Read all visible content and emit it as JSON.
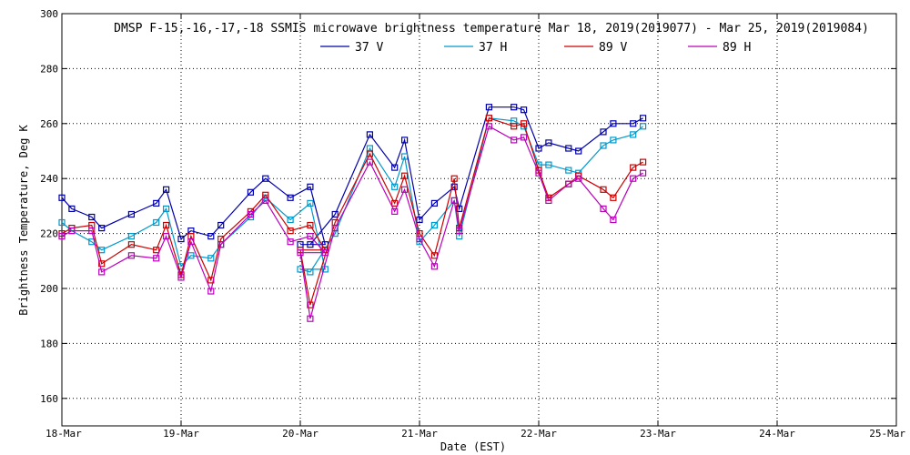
{
  "chart_data": {
    "type": "line",
    "title": "DMSP F-15,-16,-17,-18 SSMIS microwave brightness temperature Mar 18, 2019(2019077) - Mar 25, 2019(2019084)",
    "xlabel": "Date (EST)",
    "ylabel": "Brightness Temperature, Deg K",
    "xlim": [
      "2019-03-18",
      "2019-03-25"
    ],
    "ylim": [
      150,
      300
    ],
    "yticks": [
      160,
      180,
      200,
      220,
      240,
      260,
      280,
      300
    ],
    "xtick_labels": [
      "18-Mar",
      "19-Mar",
      "20-Mar",
      "21-Mar",
      "22-Mar",
      "23-Mar",
      "24-Mar",
      "25-Mar"
    ],
    "grid": true,
    "legend_position": "top-center",
    "marker": "square",
    "series": [
      {
        "name": "37 V",
        "color": "#0000aa",
        "x": [
          "2019-03-18 00:00",
          "2019-03-18 02:00",
          "2019-03-18 06:00",
          "2019-03-18 08:00",
          "2019-03-18 14:00",
          "2019-03-18 19:00",
          "2019-03-18 21:00",
          "2019-03-19 00:00",
          "2019-03-19 02:00",
          "2019-03-19 06:00",
          "2019-03-19 08:00",
          "2019-03-19 14:00",
          "2019-03-19 17:00",
          "2019-03-19 22:00",
          "2019-03-20 02:00",
          "2019-03-20 05:00",
          "2019-03-20 00:00",
          "2019-03-20 02:00",
          "2019-03-20 07:00",
          "2019-03-20 14:00",
          "2019-03-20 19:00",
          "2019-03-20 21:00",
          "2019-03-21 00:00",
          "2019-03-21 03:00",
          "2019-03-21 07:00",
          "2019-03-21 08:00",
          "2019-03-21 14:00",
          "2019-03-21 19:00",
          "2019-03-21 21:00",
          "2019-03-22 00:00",
          "2019-03-22 02:00",
          "2019-03-22 06:00",
          "2019-03-22 08:00",
          "2019-03-22 13:00",
          "2019-03-22 15:00",
          "2019-03-22 19:00",
          "2019-03-22 21:00"
        ],
        "y": [
          233,
          229,
          226,
          222,
          227,
          231,
          236,
          218,
          221,
          219,
          223,
          235,
          240,
          233,
          237,
          216,
          216,
          216,
          227,
          256,
          244,
          254,
          225,
          231,
          237,
          229,
          266,
          266,
          265,
          251,
          253,
          251,
          250,
          257,
          260,
          260,
          262
        ]
      },
      {
        "name": "37 H",
        "color": "#0099cc",
        "x": [
          "2019-03-18 00:00",
          "2019-03-18 02:00",
          "2019-03-18 06:00",
          "2019-03-18 08:00",
          "2019-03-18 14:00",
          "2019-03-18 19:00",
          "2019-03-18 21:00",
          "2019-03-19 00:00",
          "2019-03-19 02:00",
          "2019-03-19 06:00",
          "2019-03-19 08:00",
          "2019-03-19 14:00",
          "2019-03-19 17:00",
          "2019-03-19 22:00",
          "2019-03-20 02:00",
          "2019-03-20 05:00",
          "2019-03-20 00:00",
          "2019-03-20 02:00",
          "2019-03-20 07:00",
          "2019-03-20 14:00",
          "2019-03-20 19:00",
          "2019-03-20 21:00",
          "2019-03-21 00:00",
          "2019-03-21 03:00",
          "2019-03-21 07:00",
          "2019-03-21 08:00",
          "2019-03-21 14:00",
          "2019-03-21 19:00",
          "2019-03-21 21:00",
          "2019-03-22 00:00",
          "2019-03-22 02:00",
          "2019-03-22 06:00",
          "2019-03-22 08:00",
          "2019-03-22 13:00",
          "2019-03-22 15:00",
          "2019-03-22 19:00",
          "2019-03-22 21:00"
        ],
        "y": [
          224,
          221,
          217,
          214,
          219,
          224,
          229,
          208,
          212,
          211,
          216,
          226,
          233,
          225,
          231,
          207,
          207,
          206,
          220,
          251,
          237,
          248,
          217,
          223,
          232,
          219,
          262,
          261,
          259,
          245,
          245,
          243,
          242,
          252,
          254,
          256,
          259
        ]
      },
      {
        "name": "89 V",
        "color": "#cc0000",
        "x": [
          "2019-03-18 00:00",
          "2019-03-18 02:00",
          "2019-03-18 06:00",
          "2019-03-18 08:00",
          "2019-03-18 14:00",
          "2019-03-18 19:00",
          "2019-03-18 21:00",
          "2019-03-19 00:00",
          "2019-03-19 02:00",
          "2019-03-19 06:00",
          "2019-03-19 08:00",
          "2019-03-19 14:00",
          "2019-03-19 17:00",
          "2019-03-19 22:00",
          "2019-03-20 02:00",
          "2019-03-20 05:00",
          "2019-03-20 00:00",
          "2019-03-20 02:00",
          "2019-03-20 07:00",
          "2019-03-20 14:00",
          "2019-03-20 19:00",
          "2019-03-20 21:00",
          "2019-03-21 00:00",
          "2019-03-21 03:00",
          "2019-03-21 07:00",
          "2019-03-21 08:00",
          "2019-03-21 14:00",
          "2019-03-21 19:00",
          "2019-03-21 21:00",
          "2019-03-22 00:00",
          "2019-03-22 02:00",
          "2019-03-22 06:00",
          "2019-03-22 08:00",
          "2019-03-22 13:00",
          "2019-03-22 15:00",
          "2019-03-22 19:00",
          "2019-03-22 21:00"
        ],
        "y": [
          220,
          222,
          223,
          209,
          216,
          214,
          223,
          205,
          219,
          203,
          218,
          228,
          234,
          221,
          223,
          214,
          214,
          194,
          224,
          249,
          231,
          241,
          220,
          212,
          240,
          222,
          262,
          259,
          260,
          243,
          233,
          238,
          241,
          236,
          233,
          244,
          246
        ]
      },
      {
        "name": "89 H",
        "color": "#bb00bb",
        "x": [
          "2019-03-18 00:00",
          "2019-03-18 02:00",
          "2019-03-18 06:00",
          "2019-03-18 08:00",
          "2019-03-18 14:00",
          "2019-03-18 19:00",
          "2019-03-18 21:00",
          "2019-03-19 00:00",
          "2019-03-19 02:00",
          "2019-03-19 06:00",
          "2019-03-19 08:00",
          "2019-03-19 14:00",
          "2019-03-19 17:00",
          "2019-03-19 22:00",
          "2019-03-20 02:00",
          "2019-03-20 05:00",
          "2019-03-20 00:00",
          "2019-03-20 02:00",
          "2019-03-20 07:00",
          "2019-03-20 14:00",
          "2019-03-20 19:00",
          "2019-03-20 21:00",
          "2019-03-21 00:00",
          "2019-03-21 03:00",
          "2019-03-21 07:00",
          "2019-03-21 08:00",
          "2019-03-21 14:00",
          "2019-03-21 19:00",
          "2019-03-21 21:00",
          "2019-03-22 00:00",
          "2019-03-22 02:00",
          "2019-03-22 06:00",
          "2019-03-22 08:00",
          "2019-03-22 13:00",
          "2019-03-22 15:00",
          "2019-03-22 19:00",
          "2019-03-22 21:00"
        ],
        "y": [
          219,
          221,
          221,
          206,
          212,
          211,
          219,
          204,
          217,
          199,
          216,
          227,
          232,
          217,
          219,
          213,
          213,
          189,
          222,
          246,
          228,
          236,
          218,
          208,
          232,
          221,
          259,
          254,
          255,
          242,
          232,
          238,
          240,
          229,
          225,
          240,
          242
        ]
      }
    ]
  }
}
